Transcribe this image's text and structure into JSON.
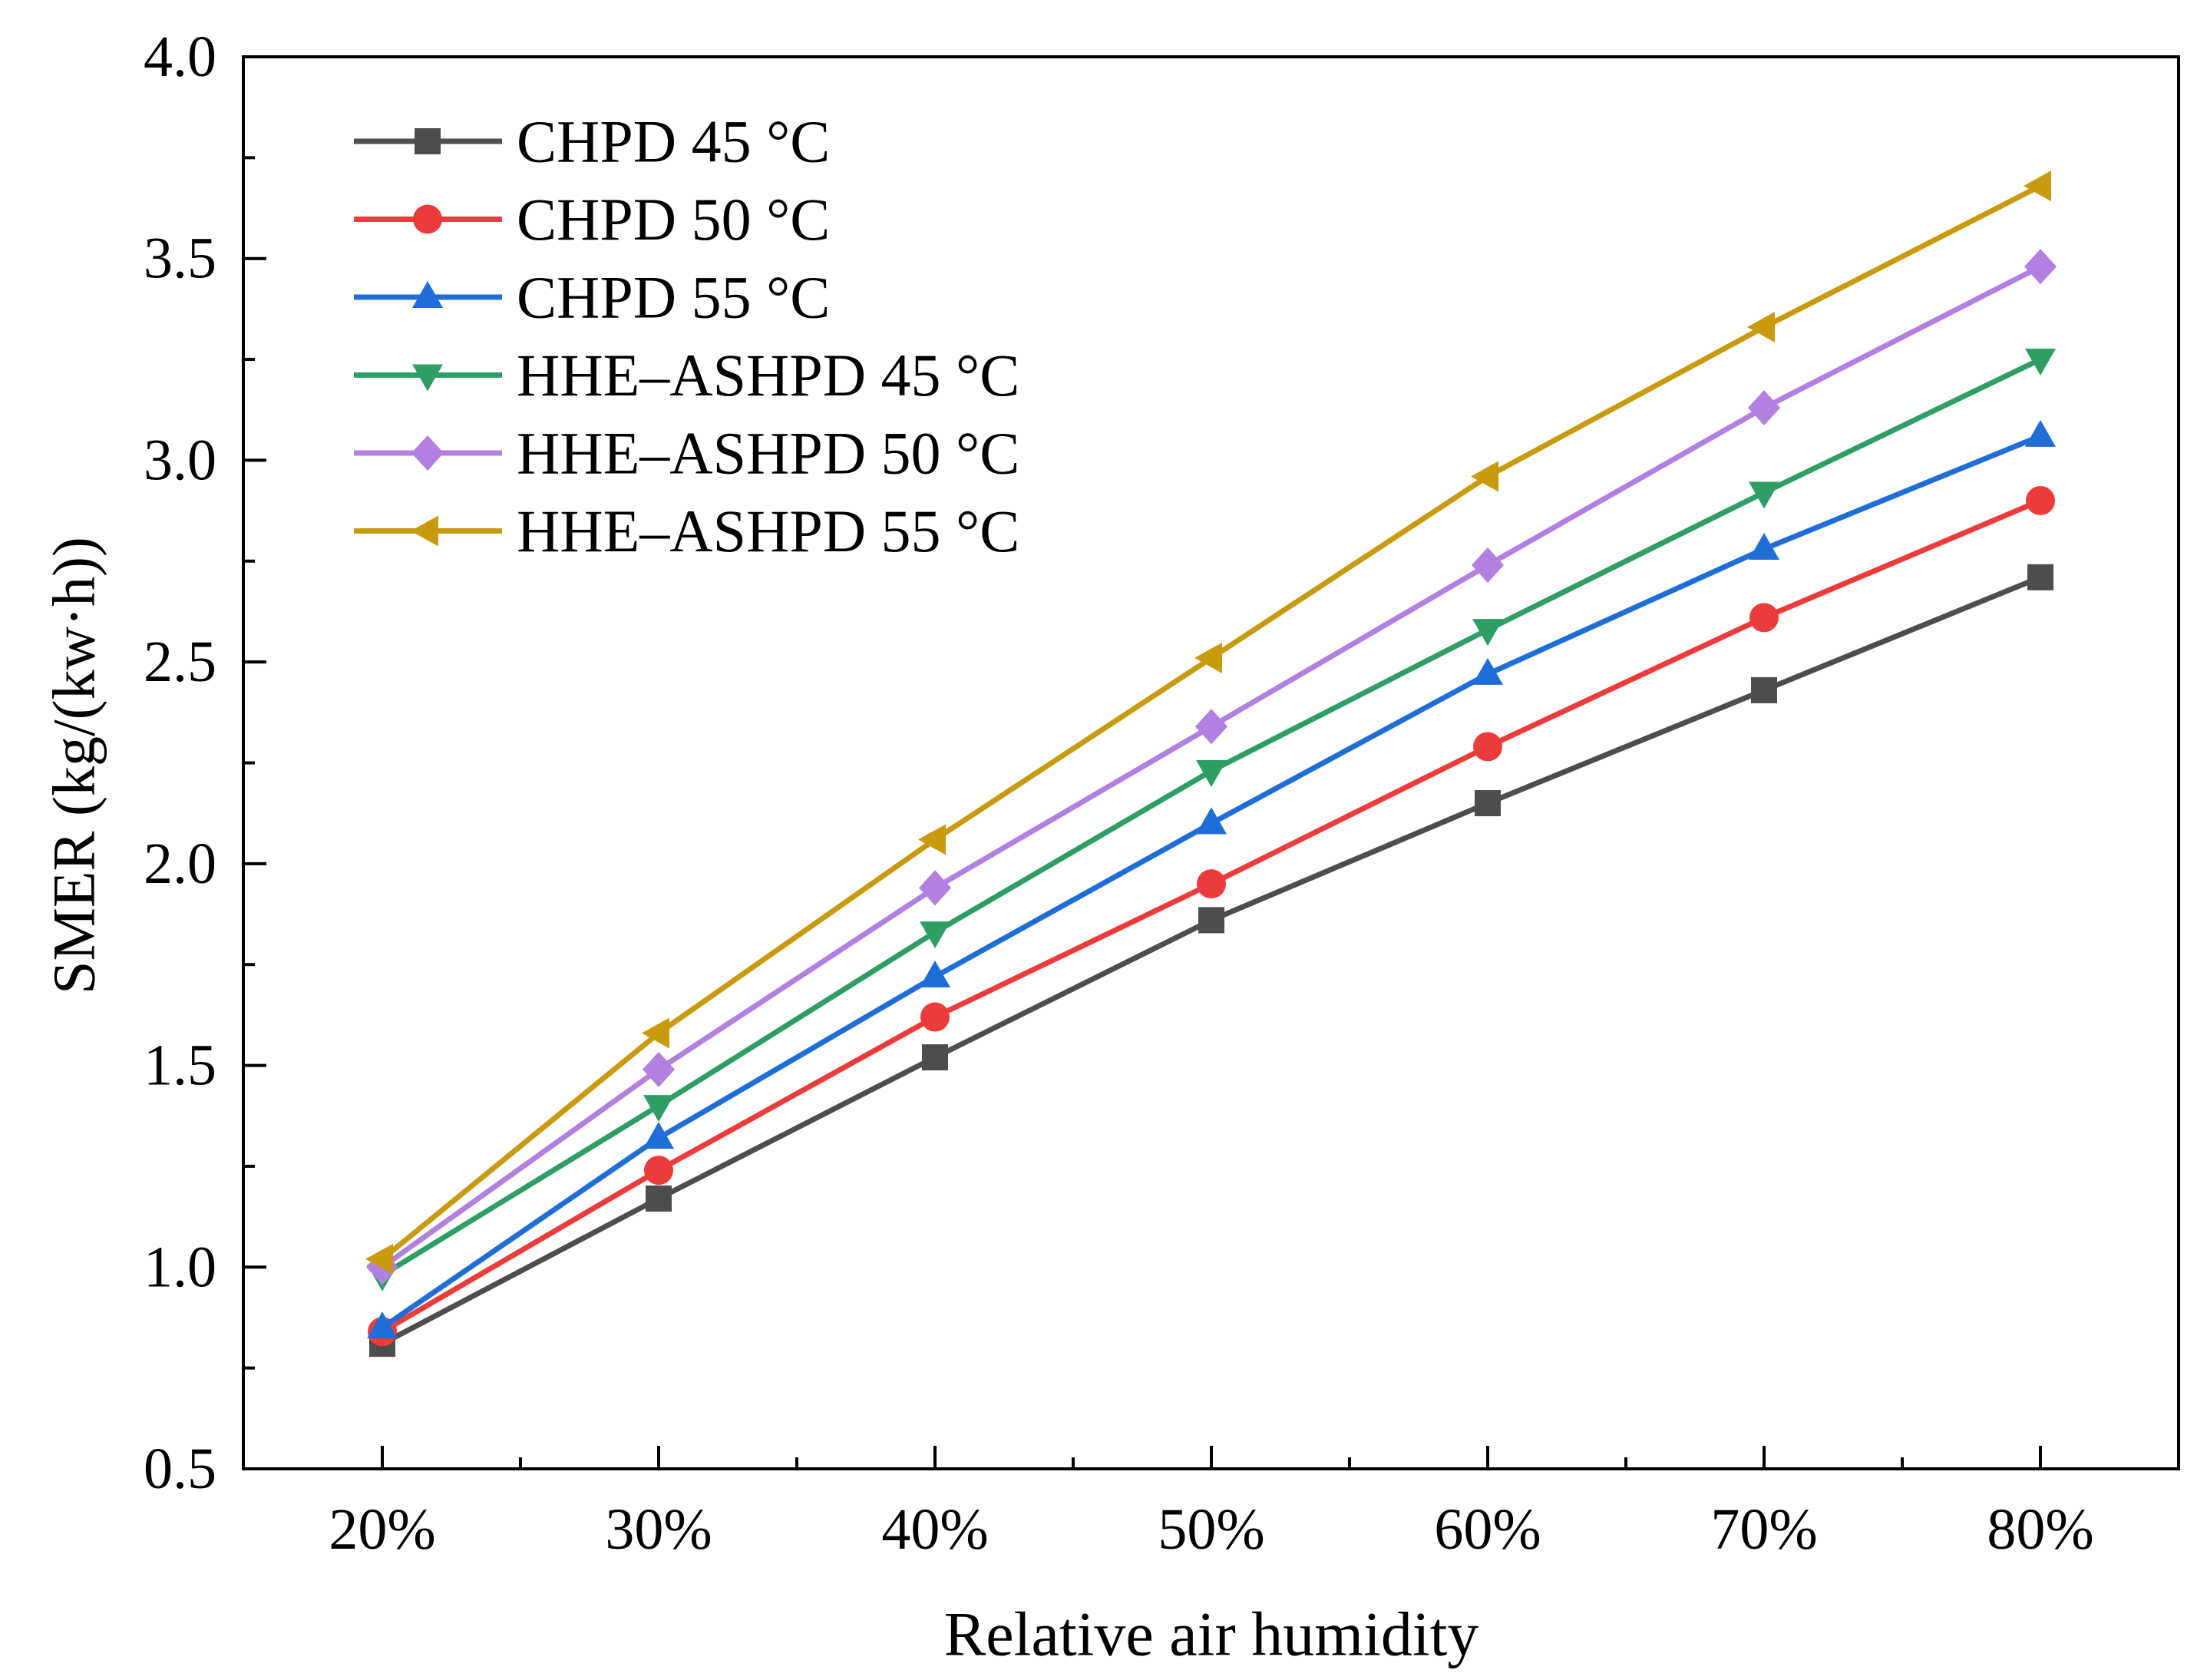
{
  "chart_data": {
    "type": "line",
    "title": "",
    "xlabel": "Relative air humidity",
    "ylabel": "SMER (kg/(kw·h))",
    "categories": [
      "20%",
      "30%",
      "40%",
      "50%",
      "60%",
      "70%",
      "80%"
    ],
    "ylim": [
      0.5,
      4.0
    ],
    "y_ticks": [
      0.5,
      1.0,
      1.5,
      2.0,
      2.5,
      3.0,
      3.5,
      4.0
    ],
    "y_tick_labels": [
      "0.5",
      "1.0",
      "1.5",
      "2.0",
      "2.5",
      "3.0",
      "3.5",
      "4.0"
    ],
    "grid": false,
    "legend_position": "top-left",
    "series": [
      {
        "name": "CHPD 45 °C",
        "color": "#4d4d4d",
        "marker": "square",
        "values": [
          0.81,
          1.17,
          1.52,
          1.86,
          2.15,
          2.43,
          2.71
        ]
      },
      {
        "name": "CHPD 50 °C",
        "color": "#ec3b3b",
        "marker": "circle",
        "values": [
          0.84,
          1.24,
          1.62,
          1.95,
          2.29,
          2.61,
          2.9
        ]
      },
      {
        "name": "CHPD 55 °C",
        "color": "#1f6ed8",
        "marker": "triangle-up",
        "values": [
          0.85,
          1.32,
          1.72,
          2.1,
          2.47,
          2.78,
          3.06
        ]
      },
      {
        "name": "HHE–ASHPD 45 °C",
        "color": "#2e9e64",
        "marker": "triangle-down",
        "values": [
          0.98,
          1.4,
          1.83,
          2.23,
          2.58,
          2.92,
          3.25
        ]
      },
      {
        "name": "HHE–ASHPD 50 °C",
        "color": "#b37fe0",
        "marker": "diamond",
        "values": [
          1.0,
          1.49,
          1.94,
          2.34,
          2.74,
          3.13,
          3.48
        ]
      },
      {
        "name": "HHE–ASHPD 55 °C",
        "color": "#c99a0e",
        "marker": "triangle-left",
        "values": [
          1.02,
          1.58,
          2.06,
          2.51,
          2.96,
          3.33,
          3.68
        ]
      }
    ]
  }
}
